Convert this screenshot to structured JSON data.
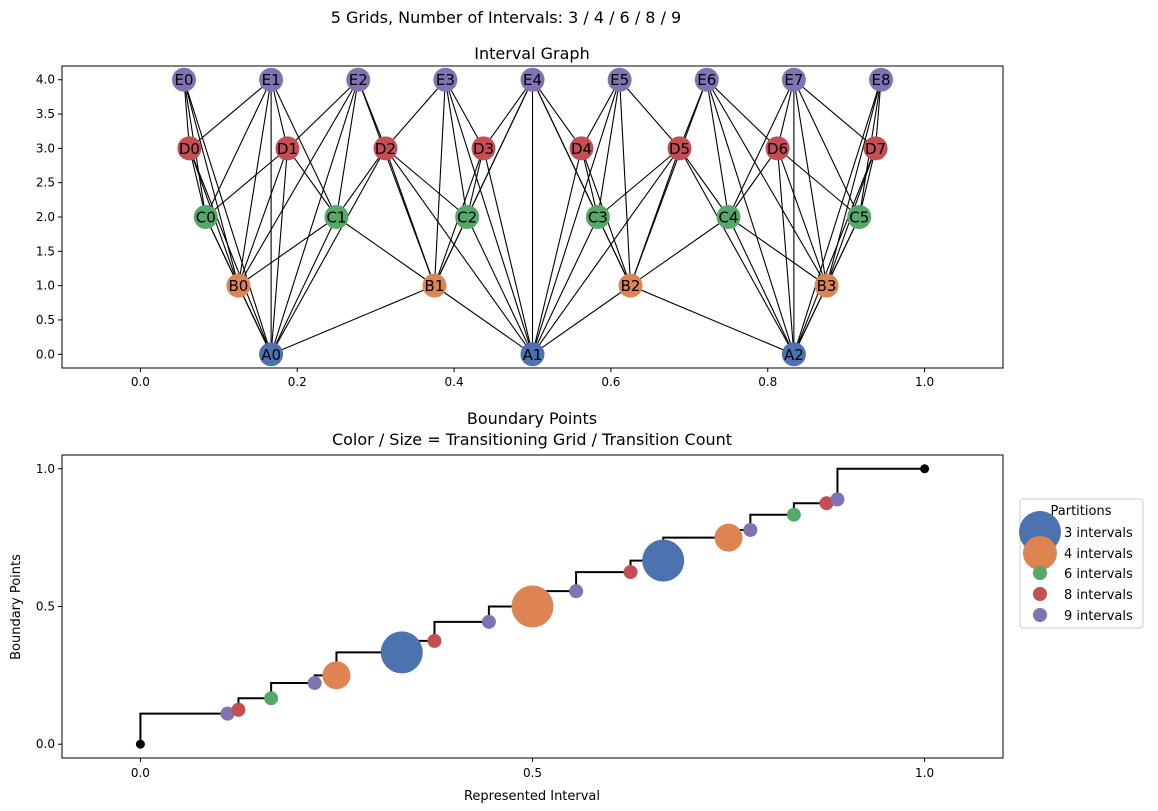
{
  "suptitle": "5 Grids, Number of Intervals: 3 / 4 / 6 / 8 / 9",
  "colors": {
    "A": "#4c72b0",
    "B": "#dd8452",
    "C": "#55a868",
    "D": "#c44e52",
    "E": "#8172b3",
    "endpoint": "#000000",
    "edge": "#000000"
  },
  "chart_data": [
    {
      "type": "network",
      "title": "Interval Graph",
      "xlim": [
        -0.1,
        1.1
      ],
      "ylim": [
        -0.2,
        4.2
      ],
      "xticks": [
        "0.0",
        "0.2",
        "0.4",
        "0.6",
        "0.8",
        "1.0"
      ],
      "yticks": [
        "0.0",
        "0.5",
        "1.0",
        "1.5",
        "2.0",
        "2.5",
        "3.0",
        "3.5",
        "4.0"
      ],
      "layers": [
        {
          "prefix": "A",
          "y": 0,
          "n": 3
        },
        {
          "prefix": "B",
          "y": 1,
          "n": 4
        },
        {
          "prefix": "C",
          "y": 2,
          "n": 6
        },
        {
          "prefix": "D",
          "y": 3,
          "n": 8
        },
        {
          "prefix": "E",
          "y": 4,
          "n": 9
        }
      ],
      "nodes": [
        {
          "label": "A0",
          "x": 0.1667,
          "y": 0
        },
        {
          "label": "A1",
          "x": 0.5,
          "y": 0
        },
        {
          "label": "A2",
          "x": 0.8333,
          "y": 0
        },
        {
          "label": "B0",
          "x": 0.125,
          "y": 1
        },
        {
          "label": "B1",
          "x": 0.375,
          "y": 1
        },
        {
          "label": "B2",
          "x": 0.625,
          "y": 1
        },
        {
          "label": "B3",
          "x": 0.875,
          "y": 1
        },
        {
          "label": "C0",
          "x": 0.0833,
          "y": 2
        },
        {
          "label": "C1",
          "x": 0.25,
          "y": 2
        },
        {
          "label": "C2",
          "x": 0.4167,
          "y": 2
        },
        {
          "label": "C3",
          "x": 0.5833,
          "y": 2
        },
        {
          "label": "C4",
          "x": 0.75,
          "y": 2
        },
        {
          "label": "C5",
          "x": 0.9167,
          "y": 2
        },
        {
          "label": "D0",
          "x": 0.0625,
          "y": 3
        },
        {
          "label": "D1",
          "x": 0.1875,
          "y": 3
        },
        {
          "label": "D2",
          "x": 0.3125,
          "y": 3
        },
        {
          "label": "D3",
          "x": 0.4375,
          "y": 3
        },
        {
          "label": "D4",
          "x": 0.5625,
          "y": 3
        },
        {
          "label": "D5",
          "x": 0.6875,
          "y": 3
        },
        {
          "label": "D6",
          "x": 0.8125,
          "y": 3
        },
        {
          "label": "D7",
          "x": 0.9375,
          "y": 3
        },
        {
          "label": "E0",
          "x": 0.0556,
          "y": 4
        },
        {
          "label": "E1",
          "x": 0.1667,
          "y": 4
        },
        {
          "label": "E2",
          "x": 0.2778,
          "y": 4
        },
        {
          "label": "E3",
          "x": 0.3889,
          "y": 4
        },
        {
          "label": "E4",
          "x": 0.5,
          "y": 4
        },
        {
          "label": "E5",
          "x": 0.6111,
          "y": 4
        },
        {
          "label": "E6",
          "x": 0.7222,
          "y": 4
        },
        {
          "label": "E7",
          "x": 0.8333,
          "y": 4
        },
        {
          "label": "E8",
          "x": 0.9444,
          "y": 4
        }
      ],
      "edges_rule": "nodes whose intervals overlap are connected (interval i of n spans [i/n, (i+1)/n])"
    },
    {
      "type": "step-scatter",
      "title": "Boundary Points",
      "subtitle": "Color / Size = Transitioning Grid / Transition Count",
      "xlabel": "Represented Interval",
      "ylabel": "Boundary Points",
      "xlim": [
        -0.1,
        1.1
      ],
      "ylim": [
        -0.05,
        1.05
      ],
      "xticks": [
        "0.0",
        "0.5",
        "1.0"
      ],
      "yticks": [
        "0.0",
        "0.5",
        "1.0"
      ],
      "legend": {
        "title": "Partitions",
        "placement": "outside right",
        "entries": [
          {
            "label": "3 intervals",
            "group": "A",
            "size": 3
          },
          {
            "label": "4 intervals",
            "group": "B",
            "size": 2.4
          },
          {
            "label": "6 intervals",
            "group": "C",
            "size": 1
          },
          {
            "label": "8 intervals",
            "group": "D",
            "size": 1
          },
          {
            "label": "9 intervals",
            "group": "E",
            "size": 1
          }
        ]
      },
      "endpoints": [
        {
          "x": 0,
          "y": 0
        },
        {
          "x": 1,
          "y": 1
        }
      ],
      "points": [
        {
          "x": 0.1111,
          "y": 0.1111,
          "group": "E",
          "count": 1
        },
        {
          "x": 0.125,
          "y": 0.125,
          "group": "D",
          "count": 1
        },
        {
          "x": 0.1667,
          "y": 0.1667,
          "group": "C",
          "count": 1
        },
        {
          "x": 0.2222,
          "y": 0.2222,
          "group": "E",
          "count": 1
        },
        {
          "x": 0.25,
          "y": 0.25,
          "group": "B",
          "count": 2
        },
        {
          "x": 0.3333,
          "y": 0.3333,
          "group": "A",
          "count": 3
        },
        {
          "x": 0.375,
          "y": 0.375,
          "group": "D",
          "count": 1
        },
        {
          "x": 0.4444,
          "y": 0.4444,
          "group": "E",
          "count": 1
        },
        {
          "x": 0.5,
          "y": 0.5,
          "group": "B",
          "count": 4
        },
        {
          "x": 0.5556,
          "y": 0.5556,
          "group": "E",
          "count": 1
        },
        {
          "x": 0.625,
          "y": 0.625,
          "group": "D",
          "count": 1
        },
        {
          "x": 0.6667,
          "y": 0.6667,
          "group": "A",
          "count": 3
        },
        {
          "x": 0.75,
          "y": 0.75,
          "group": "B",
          "count": 2
        },
        {
          "x": 0.7778,
          "y": 0.7778,
          "group": "E",
          "count": 1
        },
        {
          "x": 0.8333,
          "y": 0.8333,
          "group": "C",
          "count": 1
        },
        {
          "x": 0.875,
          "y": 0.875,
          "group": "D",
          "count": 1
        },
        {
          "x": 0.8889,
          "y": 0.8889,
          "group": "E",
          "count": 1
        }
      ]
    }
  ]
}
